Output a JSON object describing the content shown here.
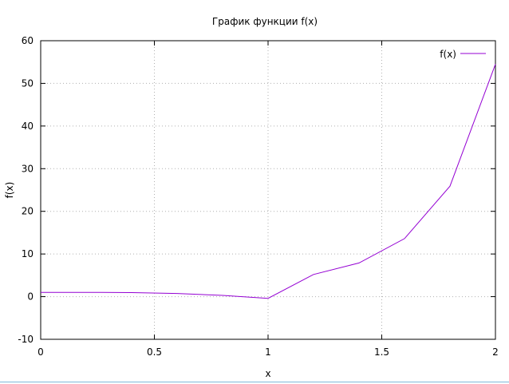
{
  "chart_data": {
    "type": "line",
    "title": "График функции f(x)",
    "xlabel": "x",
    "ylabel": "f(x)",
    "xlim": [
      0,
      2
    ],
    "ylim": [
      -10,
      60
    ],
    "xticks": [
      0,
      0.5,
      1,
      1.5,
      2
    ],
    "xtick_labels": [
      "0",
      "0.5",
      "1",
      "1.5",
      "2"
    ],
    "yticks": [
      -10,
      0,
      10,
      20,
      30,
      40,
      50,
      60
    ],
    "ytick_labels": [
      "-10",
      "0",
      "10",
      "20",
      "30",
      "40",
      "50",
      "60"
    ],
    "grid": true,
    "legend_position": "top-right",
    "series": [
      {
        "name": "f(x)",
        "color": "#9400d3",
        "x": [
          0,
          0.2,
          0.4,
          0.6,
          0.8,
          1.0,
          1.2,
          1.4,
          1.6,
          1.8,
          2.0
        ],
        "y": [
          1.0,
          1.0,
          0.95,
          0.75,
          0.3,
          -0.4,
          5.2,
          7.9,
          13.6,
          25.9,
          54.5
        ]
      }
    ]
  }
}
